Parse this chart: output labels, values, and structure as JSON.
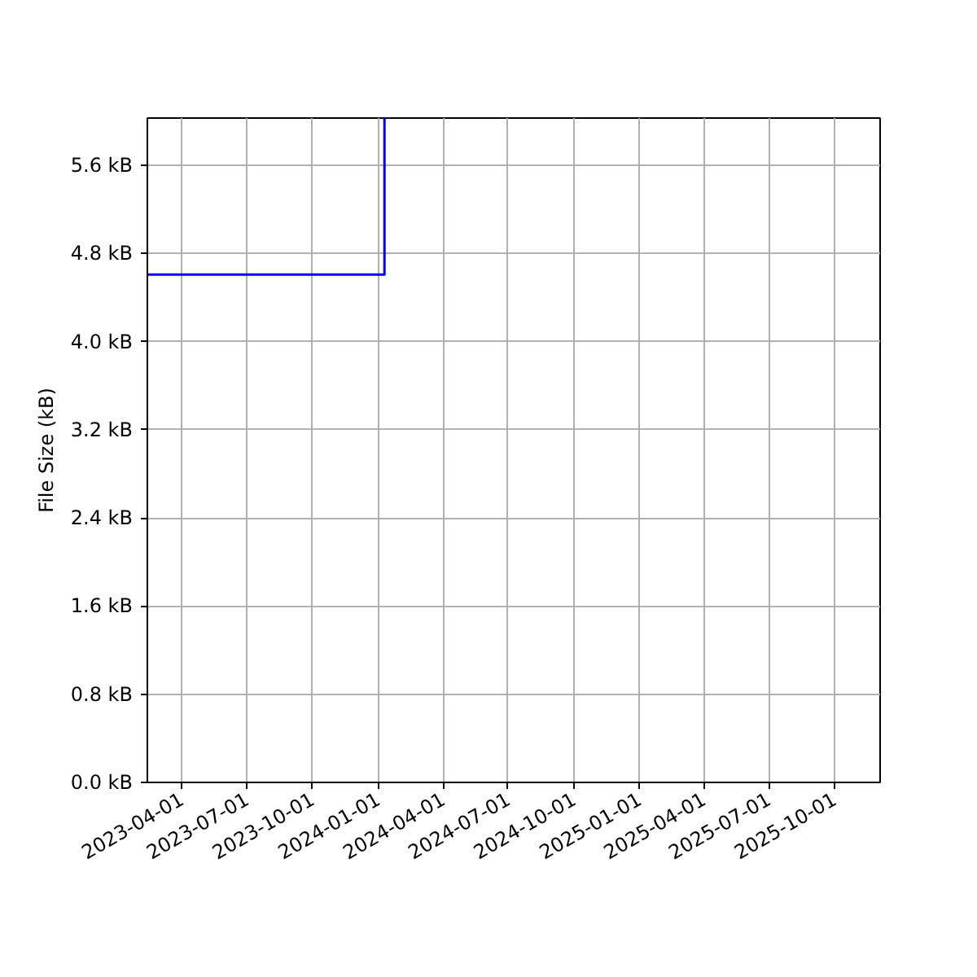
{
  "chart_data": {
    "type": "step",
    "ylabel": "File Size (kB)",
    "series": [
      {
        "color": "#0000ff",
        "x": [
          "2023-02-12",
          "2024-01-10"
        ],
        "values": [
          4.61,
          6.03
        ]
      }
    ],
    "xlim": [
      "2023-02-12",
      "2025-12-04"
    ],
    "xticks": [
      "2023-04-01",
      "2023-07-01",
      "2023-10-01",
      "2024-01-01",
      "2024-04-01",
      "2024-07-01",
      "2024-10-01",
      "2025-01-01",
      "2025-04-01",
      "2025-07-01",
      "2025-10-01"
    ],
    "ylim": [
      0,
      6.03
    ],
    "yticks": [
      {
        "value": 0,
        "label": "0.0 kB"
      },
      {
        "value": 0.8,
        "label": "0.8 kB"
      },
      {
        "value": 1.6,
        "label": "1.6 kB"
      },
      {
        "value": 2.4,
        "label": "2.4 kB"
      },
      {
        "value": 3.2,
        "label": "3.2 kB"
      },
      {
        "value": 4.0,
        "label": "4.0 kB"
      },
      {
        "value": 4.8,
        "label": "4.8 kB"
      },
      {
        "value": 5.6,
        "label": "5.6 kB"
      }
    ],
    "grid": true
  }
}
